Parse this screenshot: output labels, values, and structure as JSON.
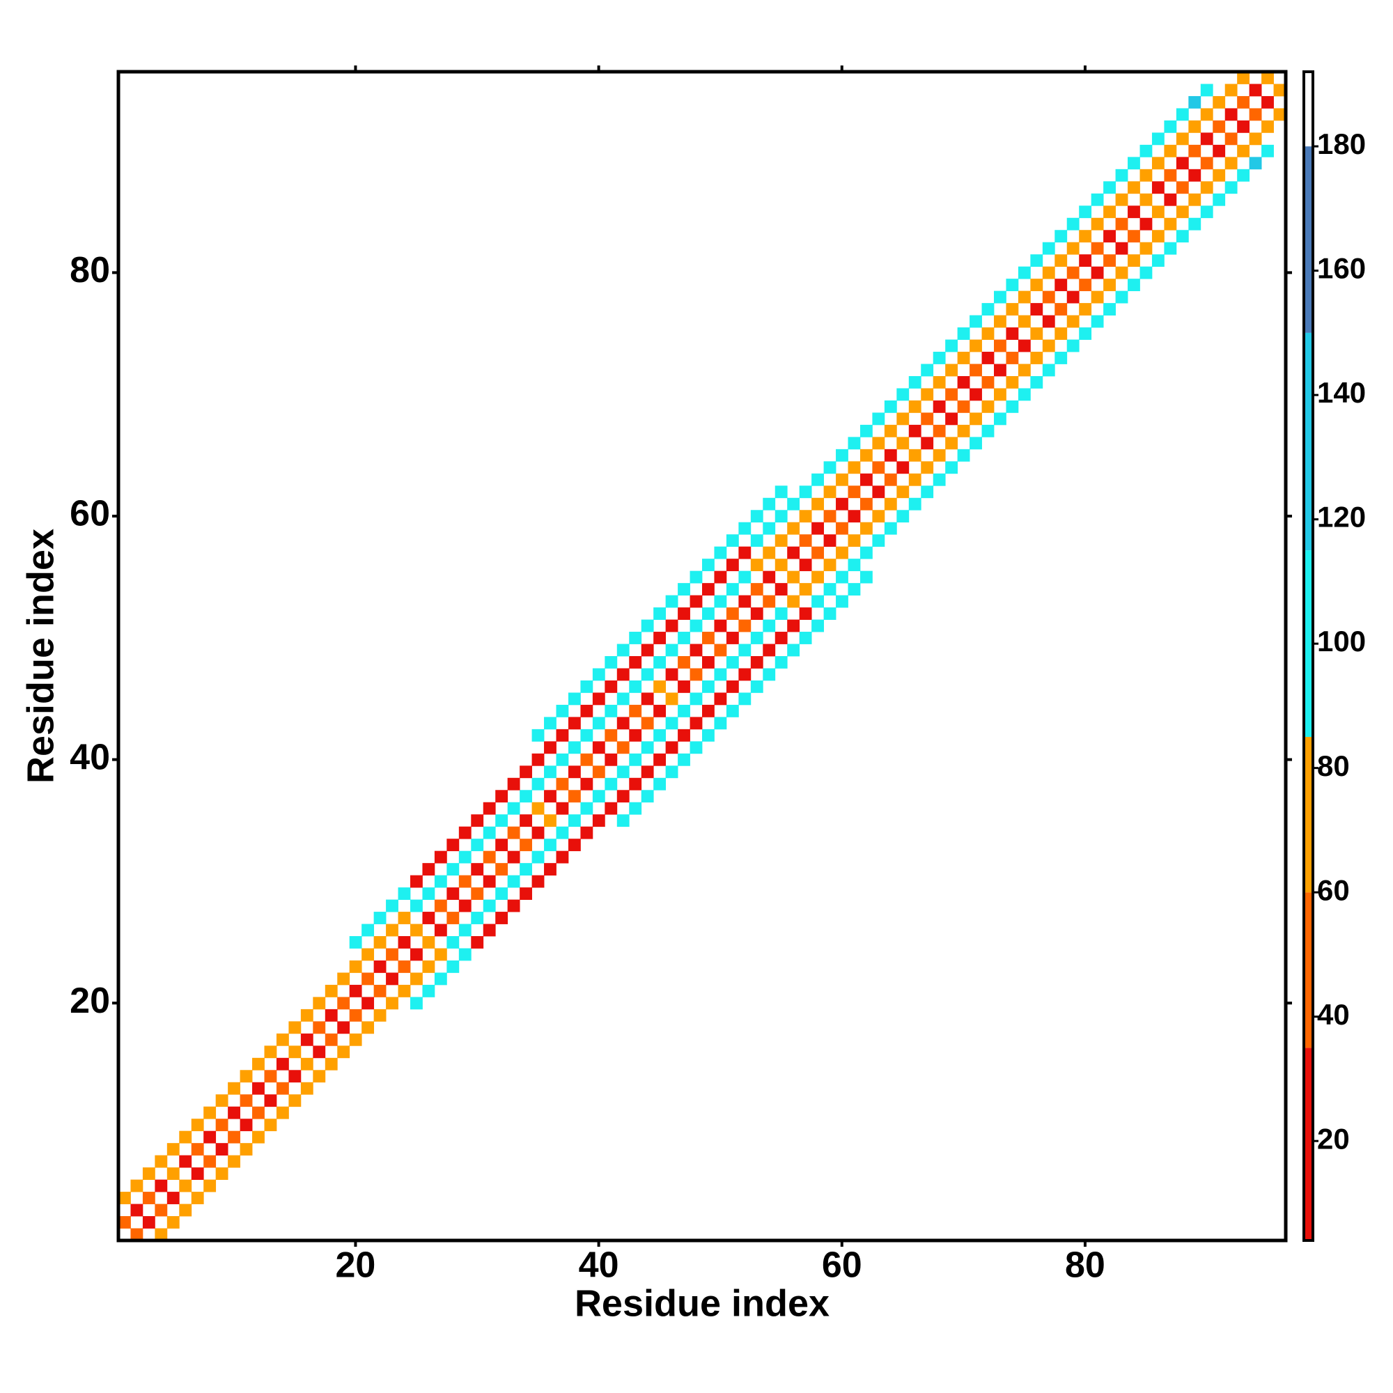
{
  "chart_data": {
    "type": "heatmap",
    "x_label": "Residue index",
    "y_label": "Residue index",
    "xlim": [
      0.5,
      96.5
    ],
    "ylim": [
      0.5,
      96.5
    ],
    "xticks": [
      20,
      40,
      60,
      80
    ],
    "yticks": [
      20,
      40,
      60,
      80
    ],
    "x": [
      1,
      2,
      3,
      4,
      5,
      6,
      7,
      8,
      9,
      10,
      11,
      12,
      13,
      14,
      15,
      16,
      17,
      18,
      19,
      20,
      21,
      22,
      23,
      24,
      25,
      26,
      27,
      28,
      29,
      30,
      31,
      32,
      33,
      34,
      35,
      36,
      37,
      38,
      39,
      40,
      41,
      42,
      43,
      44,
      45,
      46,
      47,
      48,
      49,
      50,
      51,
      52,
      53,
      54,
      55,
      56,
      57,
      58,
      59,
      60,
      61,
      62,
      63,
      64,
      65,
      66,
      67,
      68,
      69,
      70,
      71,
      72,
      73,
      74,
      75,
      76,
      77,
      78,
      79,
      80,
      81,
      82,
      83,
      84,
      85,
      86,
      87,
      88,
      89,
      90,
      91,
      92,
      93,
      94,
      95,
      1,
      2,
      3,
      4,
      5,
      6,
      7,
      8,
      9,
      10,
      11,
      12,
      13,
      14,
      15,
      16,
      17,
      18,
      19,
      20,
      21,
      22,
      23,
      24,
      25,
      26,
      27,
      28,
      29,
      30,
      31,
      32,
      33,
      34,
      35,
      36,
      37,
      38,
      39,
      40,
      41,
      42,
      43,
      44,
      45,
      46,
      47,
      48,
      49,
      50,
      51,
      52,
      53,
      54,
      55,
      56,
      57,
      58,
      59,
      60,
      61,
      62,
      63,
      64,
      65,
      66,
      67,
      68,
      69,
      70,
      71,
      72,
      73,
      74,
      75,
      76,
      77,
      78,
      79,
      80,
      81,
      82,
      83,
      84,
      85,
      86,
      87,
      88,
      89,
      90,
      91,
      92,
      93,
      20,
      21,
      22,
      23,
      24,
      25,
      26,
      27,
      28,
      29,
      30,
      31,
      32,
      33,
      34,
      35,
      36,
      37,
      38,
      39,
      40,
      41,
      42,
      43,
      44,
      45,
      46,
      47,
      48,
      49,
      50,
      51,
      52,
      53,
      54,
      55,
      56,
      57,
      58,
      59,
      60,
      61,
      62,
      63,
      64,
      65,
      66,
      67,
      68,
      69,
      70,
      71,
      72,
      73,
      74,
      75,
      76,
      77,
      78,
      79,
      80,
      81,
      82,
      83,
      84,
      85,
      86,
      87,
      88,
      89,
      90,
      35,
      36,
      37,
      38,
      39,
      40,
      41,
      42,
      43,
      44,
      45,
      46,
      47,
      48,
      49,
      50,
      51,
      52,
      53,
      54,
      55
    ],
    "y": [
      2,
      3,
      4,
      5,
      6,
      7,
      8,
      9,
      10,
      11,
      12,
      13,
      14,
      15,
      16,
      17,
      18,
      19,
      20,
      21,
      22,
      23,
      24,
      25,
      26,
      27,
      28,
      29,
      30,
      31,
      32,
      33,
      34,
      35,
      36,
      37,
      38,
      39,
      40,
      41,
      42,
      43,
      44,
      45,
      46,
      47,
      48,
      49,
      50,
      51,
      52,
      53,
      54,
      55,
      56,
      57,
      58,
      59,
      60,
      61,
      62,
      63,
      64,
      65,
      66,
      67,
      68,
      69,
      70,
      71,
      72,
      73,
      74,
      75,
      76,
      77,
      78,
      79,
      80,
      81,
      82,
      83,
      84,
      85,
      86,
      87,
      88,
      89,
      90,
      91,
      92,
      93,
      94,
      95,
      96,
      4,
      5,
      6,
      7,
      8,
      9,
      10,
      11,
      12,
      13,
      14,
      15,
      16,
      17,
      18,
      19,
      20,
      21,
      22,
      23,
      24,
      25,
      26,
      27,
      28,
      29,
      30,
      31,
      32,
      33,
      34,
      35,
      36,
      37,
      38,
      39,
      40,
      41,
      42,
      43,
      44,
      45,
      46,
      47,
      48,
      49,
      50,
      51,
      52,
      53,
      54,
      55,
      56,
      57,
      58,
      59,
      60,
      61,
      62,
      63,
      64,
      65,
      66,
      67,
      68,
      69,
      70,
      71,
      72,
      73,
      74,
      75,
      76,
      77,
      78,
      79,
      80,
      81,
      82,
      83,
      84,
      85,
      86,
      87,
      88,
      89,
      90,
      91,
      92,
      93,
      94,
      95,
      96,
      25,
      26,
      27,
      28,
      29,
      30,
      31,
      32,
      33,
      34,
      35,
      36,
      37,
      38,
      39,
      40,
      41,
      42,
      43,
      44,
      45,
      46,
      47,
      48,
      49,
      50,
      51,
      52,
      53,
      54,
      55,
      56,
      57,
      58,
      59,
      60,
      61,
      62,
      63,
      64,
      65,
      66,
      67,
      68,
      69,
      70,
      71,
      72,
      73,
      74,
      75,
      76,
      77,
      78,
      79,
      80,
      81,
      82,
      83,
      84,
      85,
      86,
      87,
      88,
      89,
      90,
      91,
      92,
      93,
      94,
      95,
      42,
      43,
      44,
      45,
      46,
      47,
      48,
      49,
      50,
      51,
      52,
      53,
      54,
      55,
      56,
      57,
      58,
      59,
      60,
      61,
      62
    ],
    "values": [
      50,
      22,
      55,
      18,
      60,
      25,
      48,
      15,
      58,
      30,
      50,
      22,
      55,
      18,
      60,
      25,
      48,
      15,
      58,
      30,
      50,
      22,
      55,
      18,
      60,
      25,
      48,
      15,
      58,
      30,
      50,
      22,
      55,
      18,
      60,
      25,
      48,
      15,
      58,
      30,
      50,
      22,
      55,
      18,
      60,
      25,
      48,
      15,
      58,
      30,
      50,
      22,
      55,
      18,
      60,
      25,
      48,
      15,
      58,
      30,
      50,
      22,
      55,
      18,
      60,
      25,
      48,
      15,
      58,
      30,
      50,
      22,
      55,
      18,
      60,
      25,
      48,
      15,
      58,
      30,
      50,
      22,
      55,
      18,
      60,
      25,
      48,
      15,
      58,
      30,
      50,
      22,
      55,
      18,
      60,
      65,
      70,
      62,
      75,
      65,
      70,
      62,
      75,
      65,
      70,
      62,
      75,
      65,
      70,
      62,
      75,
      65,
      70,
      62,
      75,
      65,
      70,
      62,
      75,
      100,
      98,
      102,
      95,
      100,
      98,
      102,
      95,
      100,
      98,
      102,
      95,
      100,
      98,
      102,
      95,
      100,
      98,
      102,
      95,
      100,
      98,
      102,
      95,
      100,
      98,
      102,
      95,
      68,
      72,
      60,
      75,
      68,
      72,
      60,
      75,
      68,
      72,
      60,
      75,
      68,
      72,
      60,
      75,
      68,
      72,
      60,
      75,
      68,
      72,
      60,
      75,
      68,
      72,
      60,
      75,
      68,
      72,
      60,
      75,
      68,
      72,
      60,
      75,
      68,
      72,
      60,
      75,
      65,
      105,
      100,
      110,
      102,
      98,
      25,
      18,
      30,
      22,
      25,
      18,
      30,
      22,
      25,
      18,
      30,
      22,
      25,
      18,
      30,
      22,
      25,
      18,
      30,
      22,
      25,
      18,
      30,
      22,
      25,
      18,
      30,
      22,
      105,
      100,
      110,
      98,
      105,
      100,
      110,
      98,
      105,
      100,
      110,
      98,
      105,
      100,
      110,
      98,
      105,
      100,
      110,
      98,
      105,
      100,
      110,
      98,
      105,
      100,
      110,
      98,
      105,
      100,
      110,
      98,
      105,
      100,
      110,
      98,
      130,
      100,
      95,
      100,
      92,
      95,
      100,
      92,
      95,
      100,
      92,
      95,
      100,
      92,
      95,
      100,
      92,
      95,
      100,
      92,
      95,
      100,
      92
    ],
    "colorbar": {
      "lim": [
        4,
        192
      ],
      "ticks": [
        20,
        40,
        60,
        80,
        100,
        120,
        140,
        160,
        180
      ],
      "bins": [
        4,
        35,
        60,
        85,
        115,
        150,
        180,
        192
      ],
      "colors": [
        "#e8100a",
        "#ff6600",
        "#ffa000",
        "#1ef0f0",
        "#22c8e6",
        "#4a7ab8",
        "#ffffff"
      ]
    }
  }
}
